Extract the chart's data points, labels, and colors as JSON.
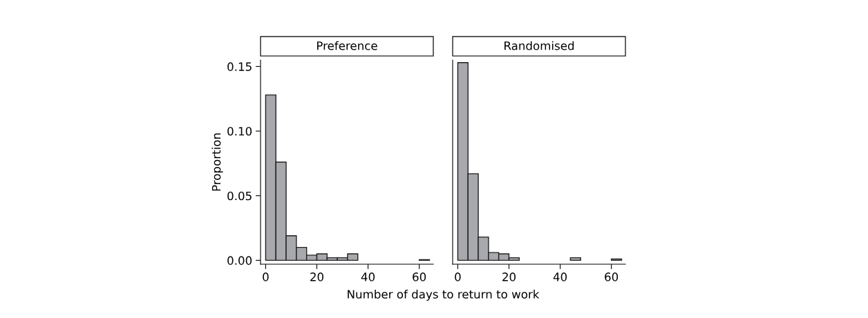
{
  "chart_data": [
    {
      "type": "histogram",
      "title": "Preference",
      "ylabel": "Proportion",
      "xlabel": "Number of days to return to work",
      "color": "#a7a9ac",
      "bins": [
        0,
        4,
        8,
        12,
        16,
        20,
        24,
        28,
        32,
        36,
        40,
        44,
        48,
        52,
        56,
        60,
        64
      ],
      "values": [
        0.128,
        0.076,
        0.019,
        0.01,
        0.004,
        0.005,
        0.002,
        0.002,
        0.005,
        0,
        0,
        0,
        0,
        0,
        0,
        0.0005
      ],
      "xlim": [
        -2,
        65.5
      ],
      "xticks": [
        0,
        20,
        40,
        60
      ],
      "ylim": [
        -0.003,
        0.155
      ],
      "yticks": [
        {
          "value": 0,
          "label": "0.00"
        },
        {
          "value": 0.05,
          "label": "0.05"
        },
        {
          "value": 0.1,
          "label": "0.10"
        },
        {
          "value": 0.15,
          "label": "0.15"
        }
      ],
      "grid": false
    },
    {
      "type": "histogram",
      "title": "Randomised",
      "color": "#a7a9ac",
      "bins": [
        0,
        4,
        8,
        12,
        16,
        20,
        24,
        28,
        32,
        36,
        40,
        44,
        48,
        52,
        56,
        60,
        64
      ],
      "values": [
        0.153,
        0.067,
        0.018,
        0.006,
        0.005,
        0.002,
        0,
        0,
        0,
        0,
        0,
        0.002,
        0,
        0,
        0,
        0.001
      ],
      "xlim": [
        -2,
        65.5
      ],
      "xticks": [
        0,
        20,
        40,
        60
      ],
      "ylim": [
        -0.003,
        0.155
      ],
      "grid": false
    }
  ]
}
